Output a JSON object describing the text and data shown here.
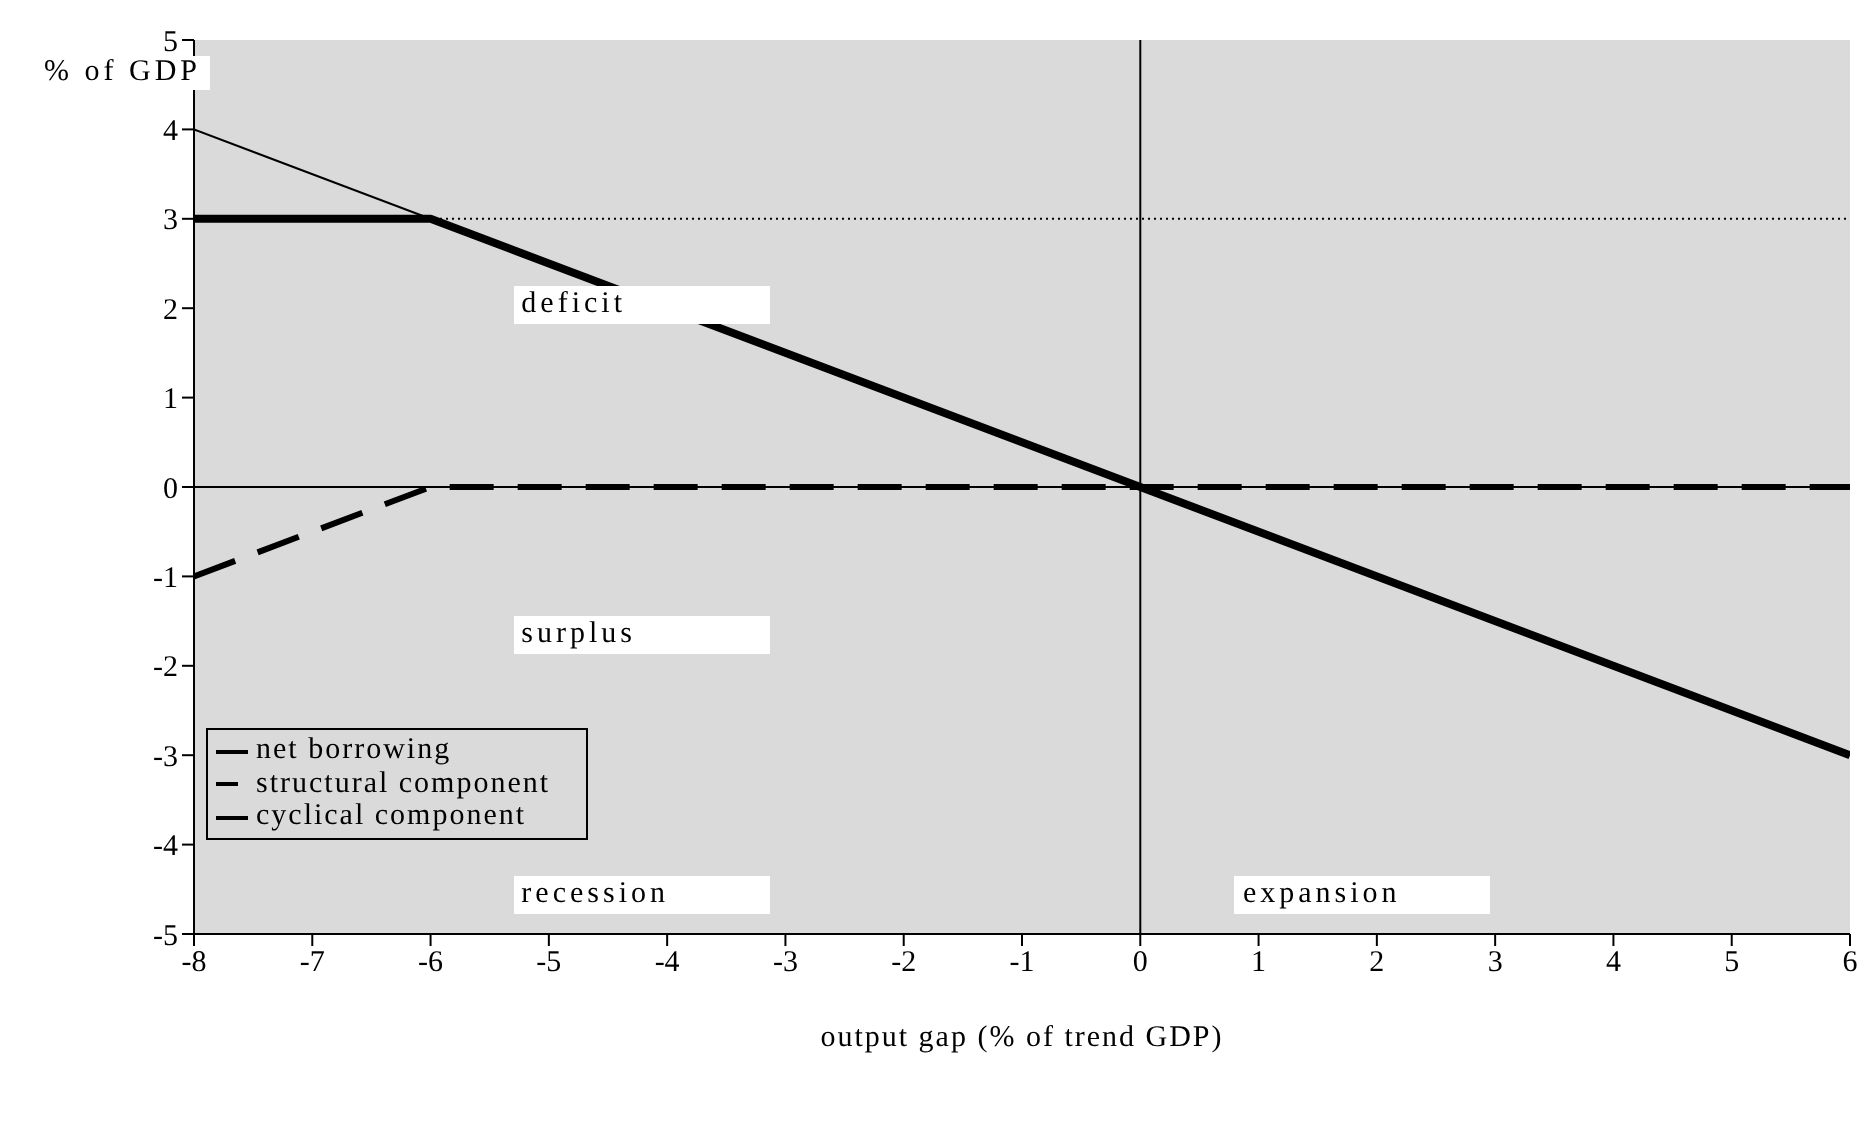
{
  "chart_data": {
    "type": "line",
    "ylabel": "% of GDP",
    "xlabel": "output gap (% of trend GDP)",
    "xlim": [
      -8,
      6
    ],
    "xticks": [
      -8,
      -7,
      -6,
      -5,
      -4,
      -3,
      -2,
      -1,
      0,
      1,
      2,
      3,
      4,
      5,
      6
    ],
    "ylim": [
      -5,
      5
    ],
    "yticks": [
      -5,
      -4,
      -3,
      -2,
      -1,
      0,
      1,
      2,
      3,
      4,
      5
    ],
    "series": [
      {
        "name": "net borrowing",
        "color": "#000000",
        "line_style": "solid",
        "x": [
          -8,
          -6,
          6
        ],
        "values": [
          3,
          3,
          -3
        ]
      },
      {
        "name": "structural component",
        "color": "#000000",
        "line_style": "dashed",
        "x": [
          -8,
          -6,
          6
        ],
        "values": [
          -1,
          0,
          0
        ]
      },
      {
        "name": "cyclical component",
        "color": "#000000",
        "line_style": "solid",
        "x": [
          -8,
          6
        ],
        "values": [
          4,
          -3
        ]
      }
    ],
    "ref_lines": [
      {
        "axis": "y",
        "value": 3,
        "color": "#000000",
        "line_style": "dotted"
      },
      {
        "axis": "x",
        "value": 0,
        "color": "#000000",
        "line_style": "solid"
      },
      {
        "axis": "y",
        "value": 0,
        "color": "#000000",
        "line_style": "solid"
      }
    ],
    "annotations": [
      "deficit",
      "surplus",
      "recession",
      "expansion"
    ],
    "legend": "bottom left",
    "grid": false,
    "marker": "none"
  }
}
